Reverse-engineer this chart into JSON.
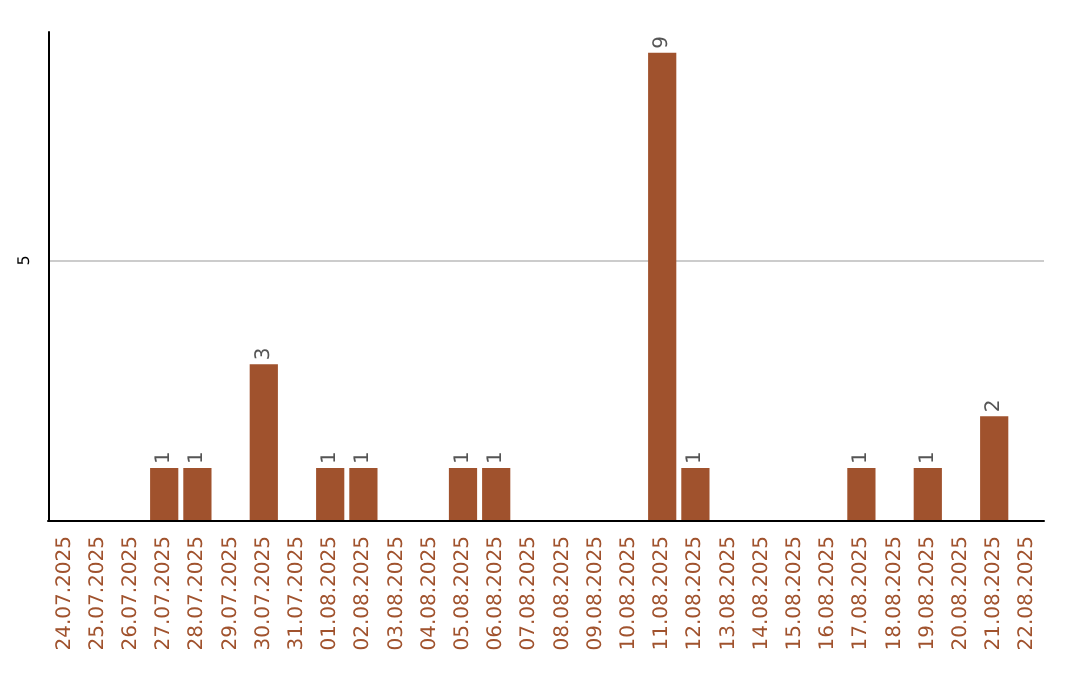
{
  "chart_data": {
    "type": "bar",
    "categories": [
      "24.07.2025",
      "25.07.2025",
      "26.07.2025",
      "27.07.2025",
      "28.07.2025",
      "29.07.2025",
      "30.07.2025",
      "31.07.2025",
      "01.08.2025",
      "02.08.2025",
      "03.08.2025",
      "04.08.2025",
      "05.08.2025",
      "06.08.2025",
      "07.08.2025",
      "08.08.2025",
      "09.08.2025",
      "10.08.2025",
      "11.08.2025",
      "12.08.2025",
      "13.08.2025",
      "14.08.2025",
      "15.08.2025",
      "16.08.2025",
      "17.08.2025",
      "18.08.2025",
      "19.08.2025",
      "20.08.2025",
      "21.08.2025",
      "22.08.2025"
    ],
    "values": [
      0,
      0,
      0,
      1,
      1,
      0,
      3,
      0,
      1,
      1,
      0,
      0,
      1,
      1,
      0,
      0,
      0,
      0,
      9,
      1,
      0,
      0,
      0,
      0,
      1,
      0,
      1,
      0,
      2,
      0
    ],
    "value_labels": [
      null,
      null,
      null,
      "1",
      "1",
      null,
      "3",
      null,
      "1",
      "1",
      null,
      null,
      "1",
      "1",
      null,
      null,
      null,
      null,
      "9",
      "1",
      null,
      null,
      null,
      null,
      "1",
      null,
      "1",
      null,
      "2",
      null
    ],
    "color": "#a0522d",
    "ylim": [
      0,
      9.4
    ],
    "yticks": [
      5
    ],
    "grid": "y"
  }
}
